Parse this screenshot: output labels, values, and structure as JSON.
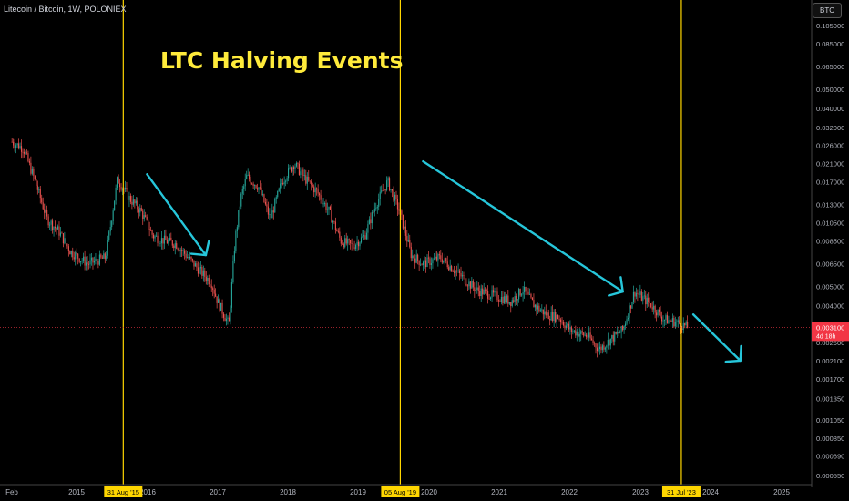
{
  "header": {
    "symbol": "Litecoin / Bitcoin, 1W, POLONIEX",
    "currency_button": "BTC"
  },
  "annotation_title": "LTC Halving Events",
  "price_tag": {
    "value": "0.003100",
    "countdown": "4d 18h"
  },
  "colors": {
    "background": "#000000",
    "up": "#26a69a",
    "down": "#ef5350",
    "halving_line": "#ffd600",
    "arrow": "#26c6da",
    "price_tag": "#f23645",
    "title": "#ffeb3b"
  },
  "chart_data": {
    "type": "candlestick",
    "y_scale": "log",
    "y_ticks": [
      "0.105000",
      "0.085000",
      "0.065000",
      "0.050000",
      "0.040000",
      "0.032000",
      "0.026000",
      "0.021000",
      "0.017000",
      "0.013000",
      "0.010500",
      "0.008500",
      "0.006500",
      "0.005000",
      "0.004000",
      "0.003100",
      "0.002600",
      "0.002100",
      "0.001700",
      "0.001350",
      "0.001050",
      "0.000850",
      "0.000690",
      "0.000550"
    ],
    "x_ticks": [
      "Feb",
      "2015",
      "2016",
      "2017",
      "2018",
      "2019",
      "2020",
      "2021",
      "2022",
      "2023",
      "2024",
      "2025"
    ],
    "halving_events": [
      {
        "date": "2015-08-31",
        "label": "31 Aug '15"
      },
      {
        "date": "2019-08-05",
        "label": "05 Aug '19"
      },
      {
        "date": "2023-07-31",
        "label": "31 Jul '23"
      }
    ],
    "trend_arrows": [
      {
        "from": [
          "2016-01-01",
          0.0185
        ],
        "to": [
          "2016-11-01",
          0.0072
        ]
      },
      {
        "from": [
          "2019-12-01",
          0.0215
        ],
        "to": [
          "2022-10-01",
          0.0047
        ]
      },
      {
        "from": [
          "2023-10-01",
          0.0036
        ],
        "to": [
          "2024-06-01",
          0.0021
        ]
      }
    ],
    "price_path": [
      [
        "2014-02-01",
        0.027
      ],
      [
        "2014-04-01",
        0.025
      ],
      [
        "2014-06-01",
        0.017
      ],
      [
        "2014-08-01",
        0.011
      ],
      [
        "2014-10-01",
        0.0095
      ],
      [
        "2014-12-01",
        0.0075
      ],
      [
        "2015-03-01",
        0.0065
      ],
      [
        "2015-06-01",
        0.007
      ],
      [
        "2015-08-01",
        0.0175
      ],
      [
        "2015-10-01",
        0.014
      ],
      [
        "2015-12-01",
        0.012
      ],
      [
        "2016-02-01",
        0.009
      ],
      [
        "2016-04-01",
        0.0085
      ],
      [
        "2016-06-01",
        0.0082
      ],
      [
        "2016-08-01",
        0.007
      ],
      [
        "2016-10-01",
        0.006
      ],
      [
        "2016-12-01",
        0.0052
      ],
      [
        "2017-01-01",
        0.0042
      ],
      [
        "2017-03-01",
        0.0032
      ],
      [
        "2017-04-01",
        0.0085
      ],
      [
        "2017-05-01",
        0.014
      ],
      [
        "2017-06-01",
        0.018
      ],
      [
        "2017-08-01",
        0.016
      ],
      [
        "2017-10-01",
        0.011
      ],
      [
        "2017-12-01",
        0.017
      ],
      [
        "2018-02-01",
        0.021
      ],
      [
        "2018-04-01",
        0.0175
      ],
      [
        "2018-06-01",
        0.015
      ],
      [
        "2018-08-01",
        0.012
      ],
      [
        "2018-10-01",
        0.0085
      ],
      [
        "2018-12-01",
        0.008
      ],
      [
        "2019-02-01",
        0.009
      ],
      [
        "2019-04-01",
        0.013
      ],
      [
        "2019-06-01",
        0.017
      ],
      [
        "2019-08-01",
        0.012
      ],
      [
        "2019-10-01",
        0.0072
      ],
      [
        "2019-12-01",
        0.0065
      ],
      [
        "2020-03-01",
        0.007
      ],
      [
        "2020-06-01",
        0.0058
      ],
      [
        "2020-09-01",
        0.0048
      ],
      [
        "2020-12-01",
        0.0045
      ],
      [
        "2021-03-01",
        0.0042
      ],
      [
        "2021-05-01",
        0.0048
      ],
      [
        "2021-07-01",
        0.004
      ],
      [
        "2021-09-01",
        0.0036
      ],
      [
        "2021-11-01",
        0.0035
      ],
      [
        "2022-01-01",
        0.003
      ],
      [
        "2022-04-01",
        0.0028
      ],
      [
        "2022-06-01",
        0.0024
      ],
      [
        "2022-08-01",
        0.0027
      ],
      [
        "2022-10-01",
        0.003
      ],
      [
        "2022-12-01",
        0.0047
      ],
      [
        "2023-03-01",
        0.004
      ],
      [
        "2023-05-01",
        0.0034
      ],
      [
        "2023-07-01",
        0.0033
      ],
      [
        "2023-09-01",
        0.0031
      ]
    ]
  }
}
